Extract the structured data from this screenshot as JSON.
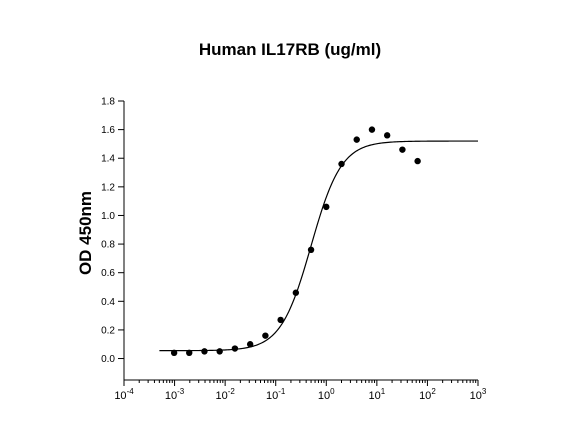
{
  "chart_data": {
    "type": "scatter",
    "title": "Human IL17RB (ug/ml)",
    "xlabel": "",
    "ylabel": "OD 450nm",
    "xscale": "log",
    "xlim": [
      0.0001,
      1000
    ],
    "ylim": [
      -0.15,
      1.8
    ],
    "x_ticks": [
      {
        "base": "10",
        "exp": "-4",
        "value": 0.0001
      },
      {
        "base": "10",
        "exp": "-3",
        "value": 0.001
      },
      {
        "base": "10",
        "exp": "-2",
        "value": 0.01
      },
      {
        "base": "10",
        "exp": "-1",
        "value": 0.1
      },
      {
        "base": "10",
        "exp": "0",
        "value": 1
      },
      {
        "base": "10",
        "exp": "1",
        "value": 10
      },
      {
        "base": "10",
        "exp": "2",
        "value": 100
      },
      {
        "base": "10",
        "exp": "3",
        "value": 1000
      }
    ],
    "y_ticks": [
      "0.0",
      "0.2",
      "0.4",
      "0.6",
      "0.8",
      "1.0",
      "1.2",
      "1.4",
      "1.6",
      "1.8"
    ],
    "grid": false,
    "legend": "none",
    "series": [
      {
        "marker": "filled-circle",
        "x": [
          0.00098,
          0.00195,
          0.0039,
          0.0078,
          0.0156,
          0.03125,
          0.0625,
          0.125,
          0.25,
          0.5,
          1,
          2,
          4,
          8,
          16,
          32,
          64
        ],
        "y": [
          0.04,
          0.04,
          0.05,
          0.05,
          0.07,
          0.1,
          0.16,
          0.27,
          0.46,
          0.76,
          1.06,
          1.36,
          1.53,
          1.6,
          1.56,
          1.46,
          1.38
        ]
      }
    ],
    "fit_curve": {
      "model": "4PL",
      "bottom": 0.055,
      "top": 1.52,
      "ec50": 0.5,
      "hill": 1.45
    }
  }
}
